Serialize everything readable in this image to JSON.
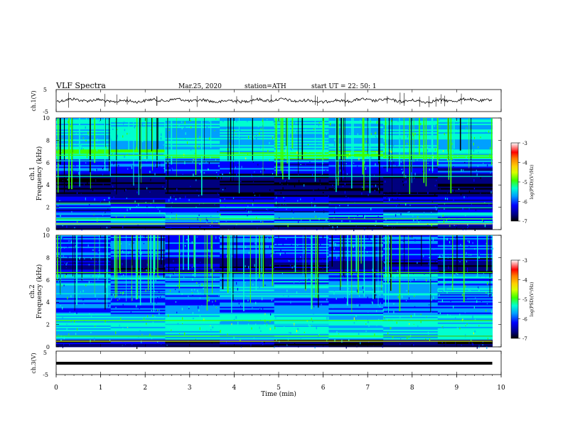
{
  "header": {
    "title": "VLF  Spectra",
    "date": "Mar.25, 2020",
    "station": "station=ATH",
    "start": "start  UT  =    22: 50: 1"
  },
  "colors": {
    "colormap": [
      "#000000",
      "#00007f",
      "#0000ff",
      "#00a0ff",
      "#00ffd0",
      "#3cff00",
      "#d8ff00",
      "#ffd000",
      "#ff7a00",
      "#ff0000",
      "#ffffff"
    ],
    "waveform": "#000000"
  },
  "chart_data": [
    {
      "type": "line",
      "name": "ch1-waveform",
      "ylabel": "ch.1(V)",
      "ylim": [
        -5,
        5
      ],
      "yticks": [
        "5",
        "-5"
      ],
      "x_range_min": [
        0,
        9.8
      ],
      "description_level": "noisy trace near 0 V"
    },
    {
      "type": "heatmap",
      "name": "ch1-spectrogram",
      "ylabel": "ch.1",
      "ylabel2": "Frequency  (kHz)",
      "xlim": [
        0,
        10
      ],
      "ylim": [
        0,
        10
      ],
      "yticks": [
        "0",
        "2",
        "4",
        "6",
        "8",
        "10"
      ],
      "data_extent_min": 9.8,
      "colorbar": {
        "label": "log(PSD)(V²/Hz)",
        "range": [
          -7,
          -3
        ],
        "ticks": [
          "-3",
          "-4",
          "-5",
          "-6",
          "-7"
        ]
      }
    },
    {
      "type": "heatmap",
      "name": "ch2-spectrogram",
      "ylabel": "ch.2",
      "ylabel2": "Frequency  (kHz)",
      "xlim": [
        0,
        10
      ],
      "ylim": [
        0,
        10
      ],
      "yticks": [
        "0",
        "2",
        "4",
        "6",
        "8",
        "10"
      ],
      "data_extent_min": 9.8,
      "colorbar": {
        "label": "log(PSD)(V²/Hz)",
        "range": [
          -7,
          -3
        ],
        "ticks": [
          "-3",
          "-4",
          "-5",
          "-6",
          "-7"
        ]
      }
    },
    {
      "type": "line",
      "name": "ch3-waveform",
      "ylabel": "ch.3(V)",
      "ylim": [
        -5,
        5
      ],
      "yticks": [
        "5",
        "-5"
      ],
      "x_range_min": [
        0,
        9.8
      ],
      "level": 0
    }
  ],
  "xaxis": {
    "label": "Time  (min)",
    "ticks": [
      "0",
      "1",
      "2",
      "3",
      "4",
      "5",
      "6",
      "7",
      "8",
      "9",
      "10"
    ]
  }
}
